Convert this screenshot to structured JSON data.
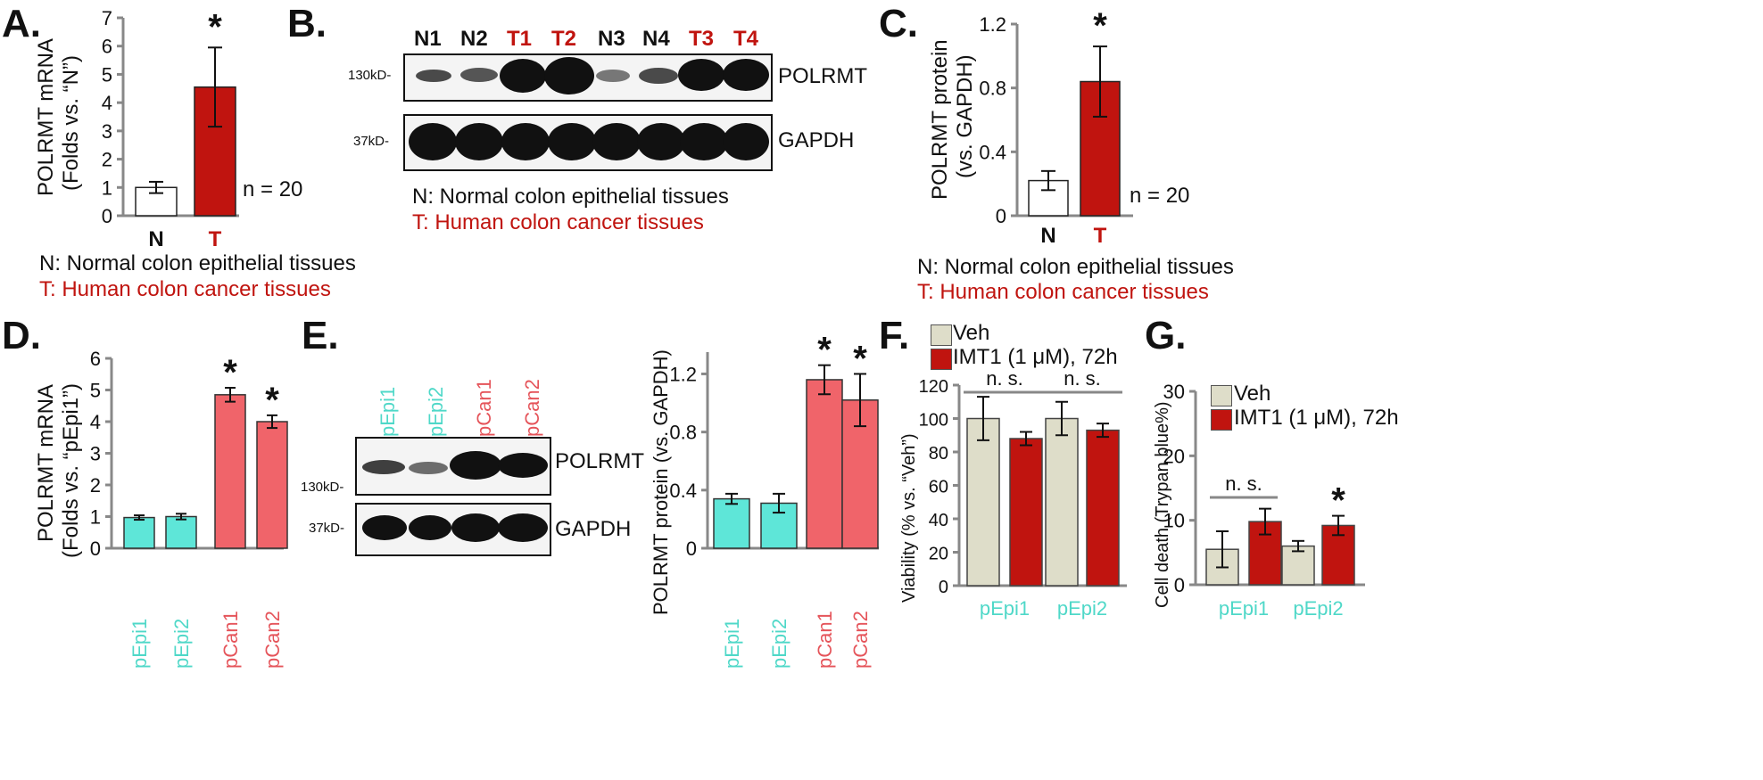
{
  "panels": {
    "A": {
      "letter": "A.",
      "ylabel_line1": "POLRMT mRNA",
      "ylabel_line2": "(Folds vs. “N”)",
      "n_label": "n = 20",
      "star": "*",
      "legend_n": "N: Normal colon epithelial tissues",
      "legend_t": "T: Human colon cancer tissues"
    },
    "B": {
      "letter": "B.",
      "lanes": [
        "N1",
        "N2",
        "T1",
        "T2",
        "N3",
        "N4",
        "T3",
        "T4"
      ],
      "marker_top": "130kD-",
      "marker_bottom": "37kD-",
      "protein_top": "POLRMT",
      "protein_bottom": "GAPDH",
      "legend_n": "N: Normal colon epithelial tissues",
      "legend_t": "T: Human colon cancer tissues"
    },
    "C": {
      "letter": "C.",
      "ylabel_line1": "POLRMT protein",
      "ylabel_line2": "(vs. GAPDH)",
      "n_label": "n = 20",
      "star": "*",
      "legend_n": "N: Normal colon epithelial tissues",
      "legend_t": "T: Human colon cancer tissues"
    },
    "D": {
      "letter": "D.",
      "ylabel_line1": "POLRMT mRNA",
      "ylabel_line2": "(Folds vs. “pEpi1”)",
      "star": "*"
    },
    "E": {
      "letter": "E.",
      "lanes": [
        "pEpi1",
        "pEpi2",
        "pCan1",
        "pCan2"
      ],
      "marker_top": "130kD-",
      "marker_bottom": "37kD-",
      "protein_top": "POLRMT",
      "protein_bottom": "GAPDH",
      "ylabel": "POLRMT protein (vs. GAPDH)",
      "star": "*"
    },
    "F": {
      "letter": "F.",
      "ylabel": "Viability (% vs. “Veh”)",
      "ns": "n. s.",
      "legend_veh": "Veh",
      "legend_imt": "IMT1 (1 μM), 72h"
    },
    "G": {
      "letter": "G.",
      "ylabel": "Cell death (Trypan blue%)",
      "ns": "n. s.",
      "star": "*",
      "legend_veh": "Veh",
      "legend_imt": "IMT1 (1 μM), 72h"
    }
  },
  "colors": {
    "dark_red": "#c0140f",
    "light_red": "#f0646a",
    "cyan": "#5ee6d8",
    "beige": "#deddc9",
    "white_bar": "#ffffff",
    "axis": "#888888"
  },
  "chart_data": [
    {
      "id": "A",
      "type": "bar",
      "categories": [
        "N",
        "T"
      ],
      "values": [
        1.0,
        4.55
      ],
      "errors": [
        0.2,
        1.4
      ],
      "ylim": [
        0,
        7
      ],
      "yticks": [
        0,
        1,
        2,
        3,
        4,
        5,
        6,
        7
      ],
      "ylabel": "POLRMT mRNA (Folds vs. “N”)"
    },
    {
      "id": "C",
      "type": "bar",
      "categories": [
        "N",
        "T"
      ],
      "values": [
        0.22,
        0.84
      ],
      "errors": [
        0.06,
        0.22
      ],
      "ylim": [
        0,
        1.2
      ],
      "yticks": [
        "0",
        "0.4",
        "0.8",
        "1.2"
      ],
      "ylabel": "POLRMT protein (vs. GAPDH)"
    },
    {
      "id": "D",
      "type": "bar",
      "categories": [
        "pEpi1",
        "pEpi2",
        "pCan1",
        "pCan2"
      ],
      "values": [
        0.97,
        1.0,
        4.85,
        4.0
      ],
      "errors": [
        0.07,
        0.09,
        0.22,
        0.2
      ],
      "ylim": [
        0,
        6
      ],
      "yticks": [
        0,
        1,
        2,
        3,
        4,
        5,
        6
      ],
      "ylabel": "POLRMT mRNA (Folds vs. “pEpi1”)"
    },
    {
      "id": "E",
      "type": "bar",
      "categories": [
        "pEpi1",
        "pEpi2",
        "pCan1",
        "pCan2"
      ],
      "values": [
        0.34,
        0.31,
        1.16,
        1.02
      ],
      "errors": [
        0.035,
        0.065,
        0.1,
        0.18
      ],
      "ylim": [
        0,
        1.35
      ],
      "yticks": [
        "0",
        "0.4",
        "0.8",
        "1.2"
      ],
      "ylabel": "POLRMT protein (vs. GAPDH)"
    },
    {
      "id": "F",
      "type": "bar",
      "categories": [
        "pEpi1",
        "pEpi2"
      ],
      "series": [
        {
          "name": "Veh",
          "values": [
            100,
            100
          ],
          "errors": [
            13,
            10
          ]
        },
        {
          "name": "IMT1 (1 μM), 72h",
          "values": [
            88,
            93
          ],
          "errors": [
            4,
            4
          ]
        }
      ],
      "ylim": [
        0,
        120
      ],
      "yticks": [
        0,
        20,
        40,
        60,
        80,
        100,
        120
      ],
      "ylabel": "Viability (% vs. “Veh”)"
    },
    {
      "id": "G",
      "type": "bar",
      "categories": [
        "pEpi1",
        "pEpi2"
      ],
      "series": [
        {
          "name": "Veh",
          "values": [
            5.5,
            6.0
          ],
          "errors": [
            2.8,
            0.8
          ]
        },
        {
          "name": "IMT1 (1 μM), 72h",
          "values": [
            9.8,
            9.2
          ],
          "errors": [
            2.0,
            1.5
          ]
        }
      ],
      "ylim": [
        0,
        30
      ],
      "yticks": [
        0,
        10,
        20,
        30
      ],
      "ylabel": "Cell death (Trypan blue%)"
    }
  ]
}
